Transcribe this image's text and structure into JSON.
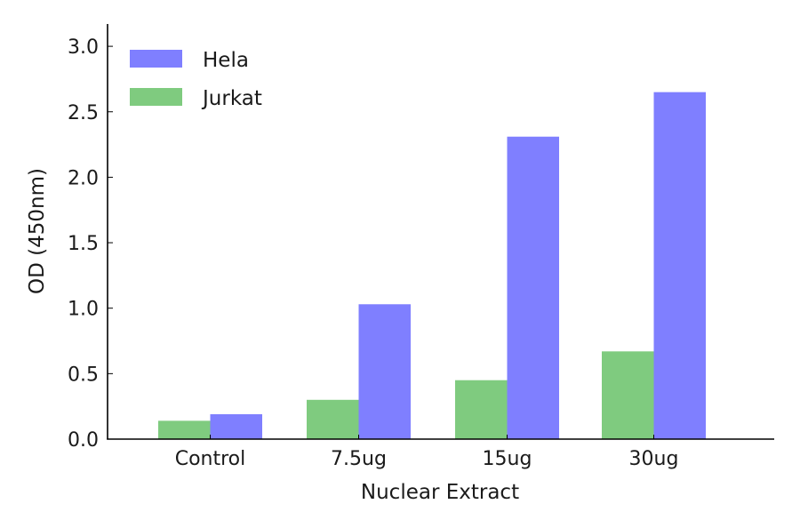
{
  "chart_data": {
    "type": "bar",
    "title": "",
    "xlabel": "Nuclear Extract",
    "ylabel": "OD (450nm)",
    "categories": [
      "Control",
      "7.5ug",
      "15ug",
      "30ug"
    ],
    "series": [
      {
        "name": "Jurkat",
        "color": "#7fcb7f",
        "values": [
          0.14,
          0.3,
          0.45,
          0.67
        ]
      },
      {
        "name": "Hela",
        "color": "#7f7fff",
        "values": [
          0.19,
          1.03,
          2.31,
          2.65
        ]
      }
    ],
    "ylim": [
      0.0,
      3.15
    ],
    "yticks": [
      "0.0",
      "0.5",
      "1.0",
      "1.5",
      "2.0",
      "2.5",
      "3.0"
    ],
    "ytick_values": [
      0.0,
      0.5,
      1.0,
      1.5,
      2.0,
      2.5,
      3.0
    ],
    "grid": false,
    "legend": {
      "position": "upper left",
      "entries": [
        {
          "label": "Hela",
          "color": "#7f7fff"
        },
        {
          "label": "Jurkat",
          "color": "#7fcb7f"
        }
      ]
    }
  }
}
